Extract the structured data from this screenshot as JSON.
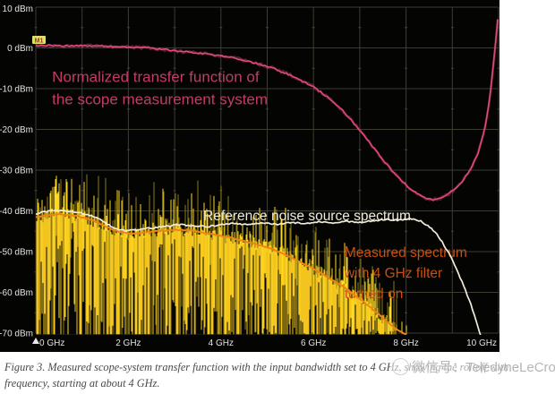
{
  "scope": {
    "marker_badge": "M1",
    "trigger_marker": "trigger-position-arrow"
  },
  "chart_data": {
    "type": "line",
    "title": "",
    "x_unit": "GHz",
    "y_unit": "dBm",
    "xlim": [
      0,
      10
    ],
    "ylim": [
      -70,
      10
    ],
    "grid": "on",
    "x_grid_interval_ghz": 1,
    "y_grid_interval_db": 10,
    "x_ticks": [
      0,
      2,
      4,
      6,
      8,
      10
    ],
    "x_tick_labels": [
      "0 GHz",
      "2 GHz",
      "4 GHz",
      "6 GHz",
      "8 GHz",
      "10 GHz"
    ],
    "y_ticks": [
      10,
      0,
      -10,
      -20,
      -30,
      -40,
      -50,
      -60,
      -70
    ],
    "y_tick_labels": [
      "10 dBm",
      "0 dBm",
      "-10 dBm",
      "-20 dBm",
      "-30 dBm",
      "-40 dBm",
      "-50 dBm",
      "-60 dBm",
      "-70 dBm"
    ],
    "legend": "none (labels annotated on chart)",
    "series": [
      {
        "name": "Normalized transfer function of the scope measurement system",
        "color": "#e0487c",
        "style": "noisy-line",
        "points": [
          [
            0,
            0.5
          ],
          [
            0.3,
            0.6
          ],
          [
            0.6,
            0.5
          ],
          [
            0.9,
            0.55
          ],
          [
            1.2,
            0.45
          ],
          [
            1.5,
            0.4
          ],
          [
            1.8,
            0.3
          ],
          [
            2.1,
            0.15
          ],
          [
            2.4,
            0
          ],
          [
            2.7,
            -0.3
          ],
          [
            3,
            -0.7
          ],
          [
            3.3,
            -1
          ],
          [
            3.6,
            -1.4
          ],
          [
            3.9,
            -1.8
          ],
          [
            4.2,
            -2.3
          ],
          [
            4.5,
            -3
          ],
          [
            4.8,
            -3.9
          ],
          [
            5.1,
            -4.9
          ],
          [
            5.4,
            -6.2
          ],
          [
            5.7,
            -7.8
          ],
          [
            6,
            -9.6
          ],
          [
            6.3,
            -12
          ],
          [
            6.6,
            -15
          ],
          [
            6.9,
            -18.8
          ],
          [
            7.2,
            -23
          ],
          [
            7.5,
            -27.5
          ],
          [
            7.8,
            -31.5
          ],
          [
            8.1,
            -34.8
          ],
          [
            8.4,
            -36.8
          ],
          [
            8.6,
            -37.3
          ],
          [
            8.8,
            -36.7
          ],
          [
            9,
            -35.2
          ],
          [
            9.2,
            -33
          ],
          [
            9.4,
            -29.8
          ],
          [
            9.55,
            -26
          ],
          [
            9.7,
            -20
          ],
          [
            9.8,
            -13
          ],
          [
            9.88,
            -5
          ],
          [
            9.94,
            2
          ],
          [
            9.98,
            7
          ]
        ]
      },
      {
        "name": "Reference noise source spectrum",
        "color": "#f2ecd8",
        "style": "noisy-line",
        "points": [
          [
            0,
            -40.8
          ],
          [
            0.2,
            -40.2
          ],
          [
            0.45,
            -39.9
          ],
          [
            0.7,
            -40
          ],
          [
            0.95,
            -40.4
          ],
          [
            1.2,
            -41.2
          ],
          [
            1.45,
            -42.5
          ],
          [
            1.7,
            -44.3
          ],
          [
            1.95,
            -44.9
          ],
          [
            2.2,
            -44.6
          ],
          [
            2.5,
            -44.2
          ],
          [
            2.8,
            -43.8
          ],
          [
            3.1,
            -43.4
          ],
          [
            3.4,
            -43.6
          ],
          [
            3.7,
            -43.9
          ],
          [
            4,
            -43.4
          ],
          [
            4.3,
            -43.1
          ],
          [
            4.6,
            -43.4
          ],
          [
            4.9,
            -43
          ],
          [
            5.2,
            -43.3
          ],
          [
            5.5,
            -42.9
          ],
          [
            5.8,
            -43.1
          ],
          [
            6.1,
            -42.7
          ],
          [
            6.4,
            -42.9
          ],
          [
            6.7,
            -42.6
          ],
          [
            7,
            -42.8
          ],
          [
            7.3,
            -42.4
          ],
          [
            7.6,
            -42.1
          ],
          [
            7.9,
            -42.3
          ],
          [
            8.1,
            -41.9
          ],
          [
            8.3,
            -42.4
          ],
          [
            8.5,
            -43.8
          ],
          [
            8.65,
            -45.5
          ],
          [
            8.8,
            -48
          ],
          [
            8.95,
            -51
          ],
          [
            9.1,
            -54.5
          ],
          [
            9.25,
            -58.5
          ],
          [
            9.4,
            -63
          ],
          [
            9.5,
            -66.5
          ],
          [
            9.58,
            -69.5
          ],
          [
            9.63,
            -71
          ]
        ]
      },
      {
        "name": "Measured spectrum with 4 GHz filter turned on (smoothed envelope)",
        "color": "#ee8316",
        "style": "line",
        "points": [
          [
            0,
            -41.6
          ],
          [
            0.3,
            -41
          ],
          [
            0.6,
            -40.9
          ],
          [
            0.9,
            -41.3
          ],
          [
            1.2,
            -42.2
          ],
          [
            1.5,
            -43.8
          ],
          [
            1.8,
            -45.2
          ],
          [
            2.1,
            -45.6
          ],
          [
            2.4,
            -45.2
          ],
          [
            2.7,
            -44.9
          ],
          [
            3,
            -44.7
          ],
          [
            3.3,
            -44.8
          ],
          [
            3.6,
            -45.3
          ],
          [
            3.9,
            -45.9
          ],
          [
            4.2,
            -46.6
          ],
          [
            4.5,
            -47.4
          ],
          [
            4.8,
            -48.3
          ],
          [
            5.1,
            -49.4
          ],
          [
            5.4,
            -50.8
          ],
          [
            5.7,
            -52.4
          ],
          [
            6,
            -54.2
          ],
          [
            6.3,
            -56.2
          ],
          [
            6.6,
            -58.3
          ],
          [
            6.9,
            -60.7
          ],
          [
            7.2,
            -63.4
          ],
          [
            7.5,
            -66.3
          ],
          [
            7.8,
            -69.2
          ],
          [
            8,
            -70.5
          ]
        ]
      },
      {
        "name": "Measured spectrum with 4 GHz filter turned on (noisy spectrum fill)",
        "color": "#f2c41d",
        "style": "noise-fill",
        "spike_db_above_envelope": 11,
        "floor_dbm": -70.3,
        "points": [
          [
            0,
            -41.6
          ],
          [
            0.3,
            -41
          ],
          [
            0.6,
            -40.9
          ],
          [
            0.9,
            -41.3
          ],
          [
            1.2,
            -42.2
          ],
          [
            1.5,
            -43.8
          ],
          [
            1.8,
            -45.2
          ],
          [
            2.1,
            -45.6
          ],
          [
            2.4,
            -45.2
          ],
          [
            2.7,
            -44.9
          ],
          [
            3,
            -44.7
          ],
          [
            3.3,
            -44.8
          ],
          [
            3.6,
            -45.3
          ],
          [
            3.9,
            -45.9
          ],
          [
            4.2,
            -46.6
          ],
          [
            4.5,
            -47.4
          ],
          [
            4.8,
            -48.3
          ],
          [
            5.1,
            -49.4
          ],
          [
            5.4,
            -50.8
          ],
          [
            5.7,
            -52.4
          ],
          [
            6,
            -54.2
          ],
          [
            6.3,
            -56.2
          ],
          [
            6.6,
            -58.3
          ],
          [
            6.9,
            -60.7
          ],
          [
            7.2,
            -63.4
          ],
          [
            7.5,
            -66.3
          ],
          [
            7.8,
            -69.2
          ],
          [
            8,
            -70.5
          ]
        ]
      }
    ],
    "annotations": [
      {
        "id": "transfer-label",
        "lines": [
          "Normalized transfer function of",
          "the scope measurement system"
        ],
        "color": "#c63a67",
        "x_ghz": 0.35,
        "y_dbm": -8.3,
        "font_px": 17,
        "line_h": 25
      },
      {
        "id": "reference-label",
        "lines": [
          "Reference noise source spectrum"
        ],
        "color": "#f0ead8",
        "x_ghz": 3.62,
        "y_dbm": -42.3,
        "font_px": 15.5,
        "line_h": 20
      },
      {
        "id": "measured-label",
        "lines": [
          "Measured spectrum",
          "with 4 GHz filter",
          "turned on"
        ],
        "color": "#c7500f",
        "x_ghz": 6.67,
        "y_dbm": -51.3,
        "font_px": 15.5,
        "line_h": 23
      }
    ]
  },
  "caption": {
    "line1": "Figure 3. Measured scope-system transfer function with the input bandwidth set to 4 GHz, showing the rolloff with",
    "line2": "frequency, starting at about 4 GHz."
  },
  "watermark": {
    "text": "微信号：TeledyneLeCroy"
  }
}
